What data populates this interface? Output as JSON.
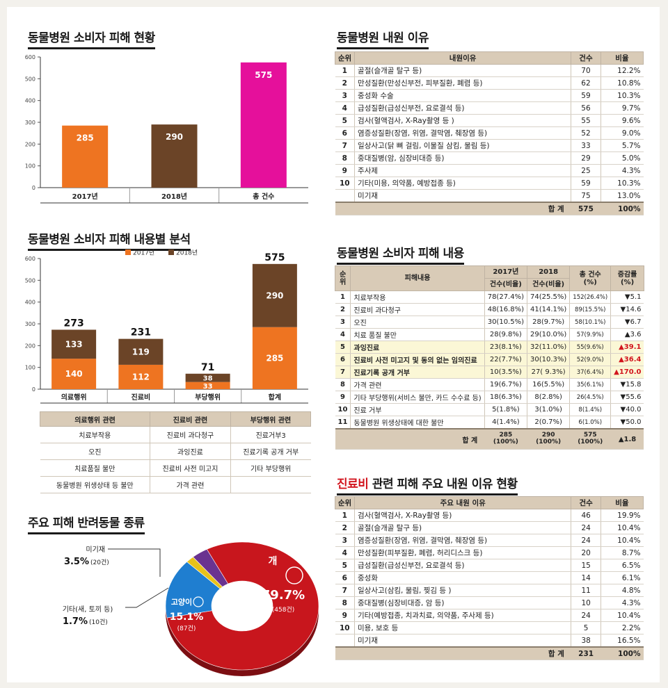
{
  "titles": {
    "chart1": "동물병원 소비자 피해 현황",
    "chart2": "동물병원 소비자 피해 내용별 분석",
    "pie": "주요 피해 반려동물 종류",
    "reasons": "동물병원 내원 이유",
    "damage": "동물병원 소비자 피해 내용",
    "clinic_red": "진료비",
    "clinic_rest": " 관련 피해 주요 내원 이유 현황"
  },
  "chart_data": [
    {
      "type": "bar",
      "title": "동물병원 소비자 피해 현황",
      "categories": [
        "2017년",
        "2018년",
        "총 건수"
      ],
      "values": [
        285,
        290,
        575
      ],
      "colors": [
        "#ee7421",
        "#6b4427",
        "#e5109b"
      ],
      "ylim": [
        0,
        600
      ],
      "yticks": [
        0,
        100,
        200,
        300,
        400,
        500,
        600
      ]
    },
    {
      "type": "bar",
      "stacked": true,
      "title": "동물병원 소비자 피해 내용별 분석",
      "categories": [
        "의료행위",
        "진료비",
        "부당행위",
        "합계"
      ],
      "series": [
        {
          "name": "2017년",
          "values": [
            140,
            112,
            33,
            285
          ],
          "color": "#ee7421"
        },
        {
          "name": "2018년",
          "values": [
            133,
            119,
            38,
            290
          ],
          "color": "#6b4427"
        }
      ],
      "totals": [
        273,
        231,
        71,
        575
      ],
      "ylim": [
        0,
        600
      ],
      "yticks": [
        0,
        100,
        200,
        300,
        400,
        500,
        600
      ],
      "legend": "top"
    },
    {
      "type": "pie",
      "title": "주요 피해 반려동물 종류",
      "slices": [
        {
          "name": "개",
          "pct": "79.7",
          "count": "(458건)",
          "value": 458,
          "color": "#c8161d"
        },
        {
          "name": "고양이",
          "pct": "15.1",
          "count": "(87건)",
          "value": 87,
          "color": "#1f7ed0"
        },
        {
          "name": "기타(새, 토끼 등)",
          "pct": "1.7",
          "count": "(10건)",
          "value": 10,
          "color": "#e8c21a"
        },
        {
          "name": "미기재",
          "pct": "3.5",
          "count": "(20건)",
          "value": 20,
          "color": "#6a3390"
        }
      ]
    }
  ],
  "cat_table": {
    "headers": [
      "의료행위 관련",
      "진료비 관련",
      "부당행위 관련"
    ],
    "rows": [
      [
        "치료부작용",
        "진료비 과다청구",
        "진료거부3"
      ],
      [
        "오진",
        "과잉진료",
        "진료기록 공개 거부"
      ],
      [
        "치료품질 불만",
        "진료비 사전 미고지",
        "기타 부당행위"
      ],
      [
        "동물병원 위생상태 등 불만",
        "가격 관련",
        ""
      ]
    ]
  },
  "reasons": {
    "headers": [
      "순위",
      "내원이유",
      "건수",
      "비율"
    ],
    "rows": [
      [
        "1",
        "골절(슬개골 탈구 등)",
        "70",
        "12.2%"
      ],
      [
        "2",
        "만성질환(만성신부전, 피부질환, 폐렴 등)",
        "62",
        "10.8%"
      ],
      [
        "3",
        "중성화 수술",
        "59",
        "10.3%"
      ],
      [
        "4",
        "급성질환(급성신부전, 요로결석 등)",
        "56",
        "9.7%"
      ],
      [
        "5",
        "검사(혈액검사, X-Ray촬영 등 )",
        "55",
        "9.6%"
      ],
      [
        "6",
        "염증성질환(장염, 위염, 결막염, 췌장염 등)",
        "52",
        "9.0%"
      ],
      [
        "7",
        "일상사고(닭 뼈 걸림, 이물질 삼킴, 물림 등)",
        "33",
        "5.7%"
      ],
      [
        "8",
        "중대질병(암, 심장비대증 등)",
        "29",
        "5.0%"
      ],
      [
        "9",
        "주사제",
        "25",
        "4.3%"
      ],
      [
        "10",
        "기타(미용, 의약품, 예방접종 등)",
        "59",
        "10.3%"
      ],
      [
        "",
        "미기재",
        "75",
        "13.0%"
      ]
    ],
    "total": [
      "합 계",
      "575",
      "100%"
    ]
  },
  "damage": {
    "headers": {
      "rank": "순위",
      "content": "피해내용",
      "y2017": "2017년",
      "y2018": "2018",
      "sub": "건수(비율)",
      "total": "총 건수\n(%)",
      "change": "증감률\n(%)"
    },
    "rows": [
      {
        "rank": "1",
        "name": "치료부작용",
        "a": "78(27.4%)",
        "b": "74(25.5%)",
        "t": "152(26.4%)",
        "c": "▼5.1",
        "up": false,
        "hl": false
      },
      {
        "rank": "2",
        "name": "진료비 과다청구",
        "a": "48(16.8%)",
        "b": "41(14.1%)",
        "t": "89(15.5%)",
        "c": "▼14.6",
        "up": false,
        "hl": false
      },
      {
        "rank": "3",
        "name": "오진",
        "a": "30(10.5%)",
        "b": "28(9.7%)",
        "t": "58(10.1%)",
        "c": "▼6.7",
        "up": false,
        "hl": false
      },
      {
        "rank": "4",
        "name": "치료 품질 불만",
        "a": "28(9.8%)",
        "b": "29(10.0%)",
        "t": "57(9.9%)",
        "c": "▲3.6",
        "up": false,
        "hl": false
      },
      {
        "rank": "5",
        "name": "과잉진료",
        "a": "23(8.1%)",
        "b": "32(11.0%)",
        "t": "55(9.6%)",
        "c": "▲39.1",
        "up": true,
        "hl": true
      },
      {
        "rank": "6",
        "name": "진료비 사전 미고지 및 동의 없는 임의진료",
        "a": "22(7.7%)",
        "b": "30(10.3%)",
        "t": "52(9.0%)",
        "c": "▲36.4",
        "up": true,
        "hl": true
      },
      {
        "rank": "7",
        "name": "진료기록 공개 거부",
        "a": "10(3.5%)",
        "b": "27( 9.3%)",
        "t": "37(6.4%)",
        "c": "▲170.0",
        "up": true,
        "hl": true
      },
      {
        "rank": "8",
        "name": "가격 관련",
        "a": "19(6.7%)",
        "b": "16(5.5%)",
        "t": "35(6.1%)",
        "c": "▼15.8",
        "up": false,
        "hl": false
      },
      {
        "rank": "9",
        "name": "기타 부당행위(서비스 불만, 카드 수수료 등)",
        "a": "18(6.3%)",
        "b": "8(2.8%)",
        "t": "26(4.5%)",
        "c": "▼55.6",
        "up": false,
        "hl": false
      },
      {
        "rank": "10",
        "name": "진료 거부",
        "a": "5(1.8%)",
        "b": "3(1.0%)",
        "t": "8(1.4%)",
        "c": "▼40.0",
        "up": false,
        "hl": false
      },
      {
        "rank": "11",
        "name": "동물병원 위생상태에 대한 불만",
        "a": "4(1.4%)",
        "b": "2(0.7%)",
        "t": "6(1.0%)",
        "c": "▼50.0",
        "up": false,
        "hl": false
      }
    ],
    "total": {
      "label": "합 계",
      "a": "285\n(100%)",
      "b": "290\n(100%)",
      "t": "575\n(100%)",
      "c": "▲1.8"
    }
  },
  "clinic": {
    "headers": [
      "순위",
      "주요 내원 이유",
      "건수",
      "비율"
    ],
    "rows": [
      [
        "1",
        "검사(혈액검사, X-Ray촬영 등)",
        "46",
        "19.9%"
      ],
      [
        "2",
        "골절(슬개골 탈구 등)",
        "24",
        "10.4%"
      ],
      [
        "3",
        "염증성질환(장염, 위염, 결막염, 췌장염 등)",
        "24",
        "10.4%"
      ],
      [
        "4",
        "만성질환(피부질환, 폐렴, 허리디스크 등)",
        "20",
        "8.7%"
      ],
      [
        "5",
        "급성질환(급성신부전, 요로결석 등)",
        "15",
        "6.5%"
      ],
      [
        "6",
        "중성화",
        "14",
        "6.1%"
      ],
      [
        "7",
        "일상사고(삼킴, 물림, 찢김 등 )",
        "11",
        "4.8%"
      ],
      [
        "8",
        "중대질병(심장비대증, 암 등)",
        "10",
        "4.3%"
      ],
      [
        "9",
        "기타(예방접종, 치과치료, 의약품, 주사제 등)",
        "24",
        "10.4%"
      ],
      [
        "10",
        "미용, 보호 등",
        "5",
        "2.2%"
      ],
      [
        "",
        "미기재",
        "38",
        "16.5%"
      ]
    ],
    "total": [
      "합 계",
      "231",
      "100%"
    ]
  }
}
